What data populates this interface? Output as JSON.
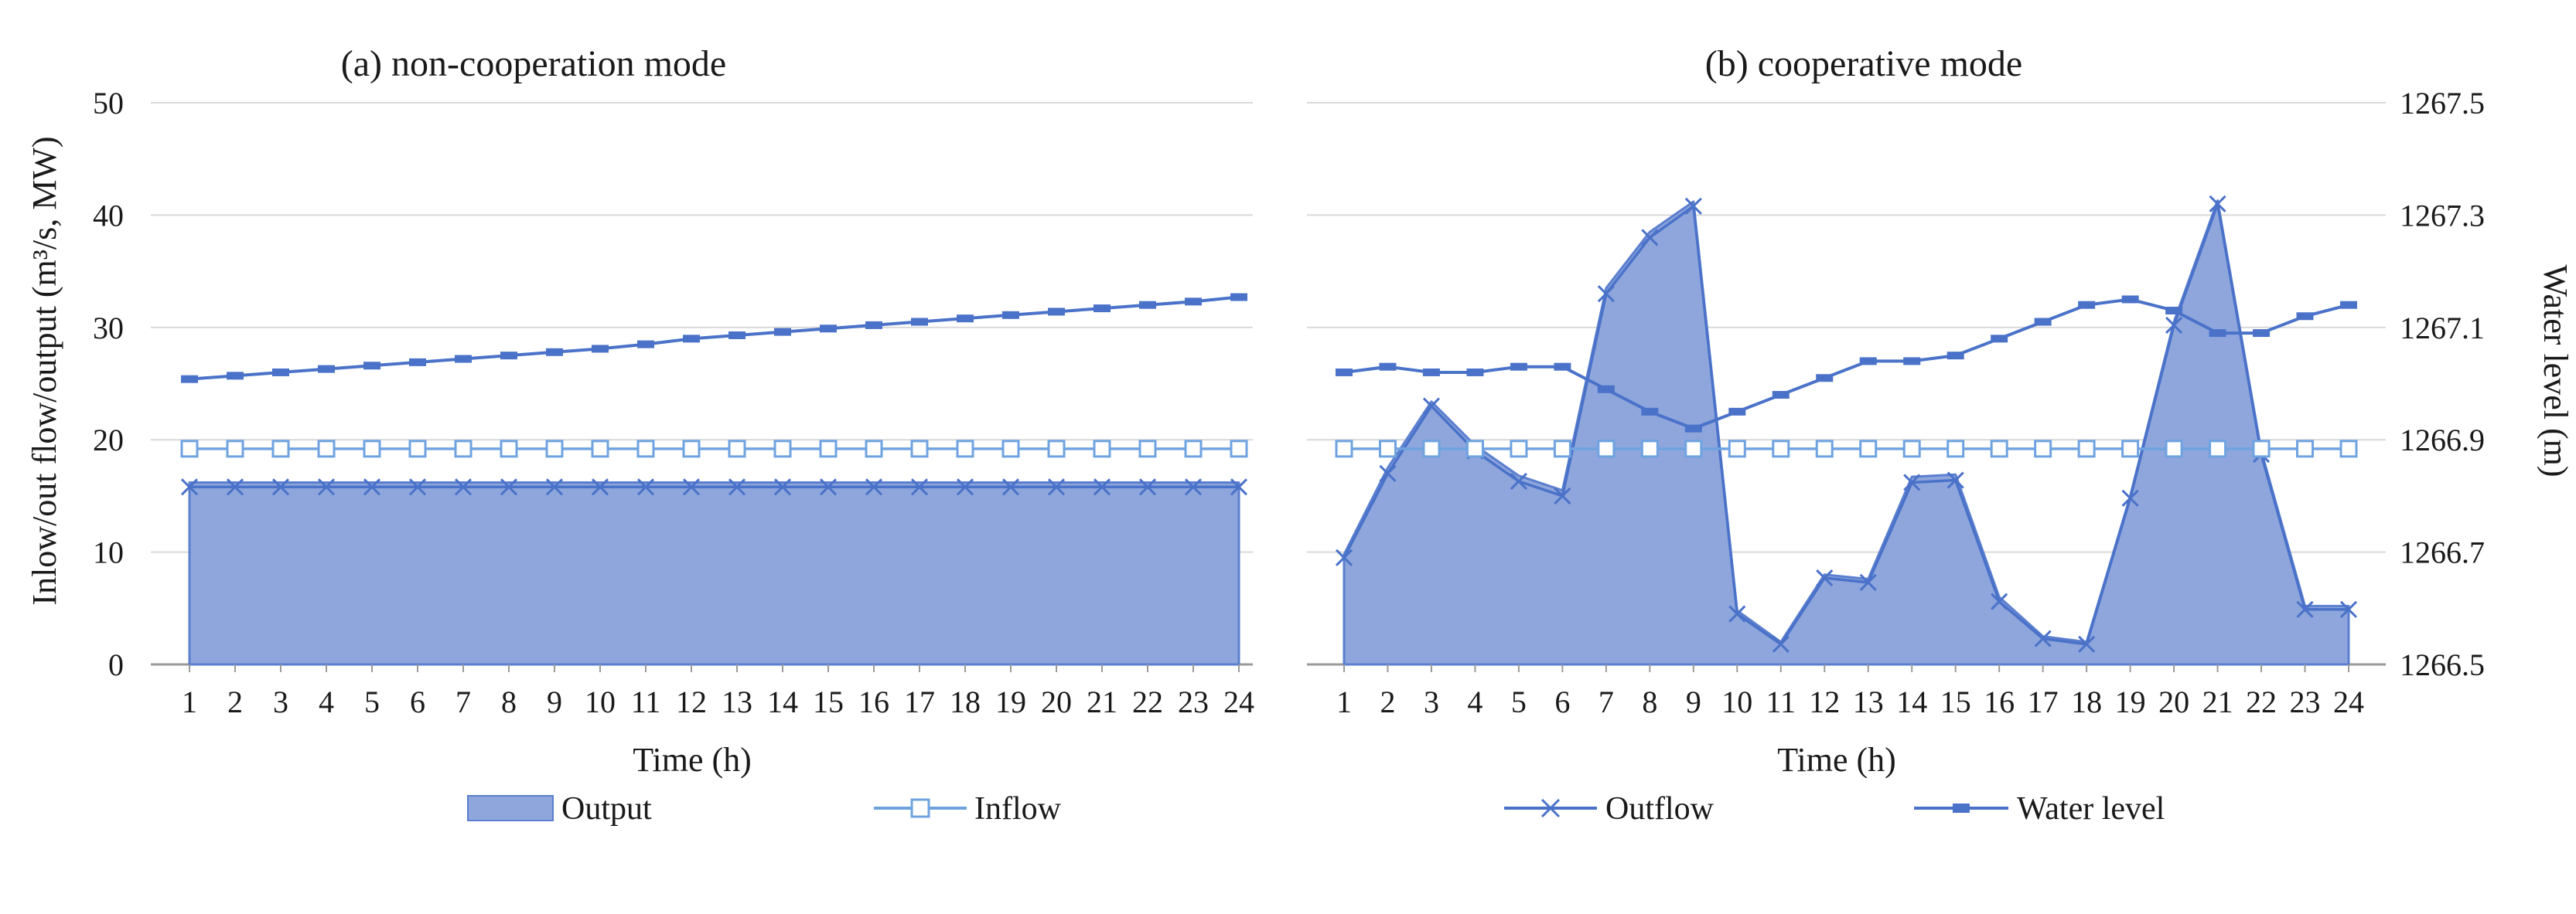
{
  "chart_data": [
    {
      "type": "area",
      "title": "(a) non-cooperation mode",
      "xlabel": "Time (h)",
      "ylabel": "Inlow/out flow/output (m³/s, MW)",
      "x": [
        1,
        2,
        3,
        4,
        5,
        6,
        7,
        8,
        9,
        10,
        11,
        12,
        13,
        14,
        15,
        16,
        17,
        18,
        19,
        20,
        21,
        22,
        23,
        24
      ],
      "xlim": [
        1,
        24
      ],
      "ylim": [
        0,
        50
      ],
      "y_ticks": [
        0,
        10,
        20,
        30,
        40,
        50
      ],
      "grid": true,
      "legend": "bottom",
      "series": [
        {
          "name": "Output",
          "kind": "area",
          "color": "#8ea6dc",
          "values": [
            16.2,
            16.2,
            16.2,
            16.2,
            16.2,
            16.2,
            16.2,
            16.2,
            16.2,
            16.2,
            16.2,
            16.2,
            16.2,
            16.2,
            16.2,
            16.2,
            16.2,
            16.2,
            16.2,
            16.2,
            16.2,
            16.2,
            16.2,
            16.2
          ]
        },
        {
          "name": "",
          "kind": "line-x",
          "color": "#4a72c9",
          "values": [
            15.8,
            15.8,
            15.8,
            15.8,
            15.8,
            15.8,
            15.8,
            15.8,
            15.8,
            15.8,
            15.8,
            15.8,
            15.8,
            15.8,
            15.8,
            15.8,
            15.8,
            15.8,
            15.8,
            15.8,
            15.8,
            15.8,
            15.8,
            15.8
          ]
        },
        {
          "name": "Inflow",
          "kind": "line-square",
          "color": "#6fa3e0",
          "values": [
            19.2,
            19.2,
            19.2,
            19.2,
            19.2,
            19.2,
            19.2,
            19.2,
            19.2,
            19.2,
            19.2,
            19.2,
            19.2,
            19.2,
            19.2,
            19.2,
            19.2,
            19.2,
            19.2,
            19.2,
            19.2,
            19.2,
            19.2,
            19.2
          ]
        },
        {
          "name": "",
          "kind": "line-dash",
          "color": "#4a72c9",
          "values": [
            25.4,
            25.7,
            26.0,
            26.3,
            26.6,
            26.9,
            27.2,
            27.5,
            27.8,
            28.1,
            28.5,
            29.0,
            29.3,
            29.6,
            29.9,
            30.2,
            30.5,
            30.8,
            31.1,
            31.4,
            31.7,
            32.0,
            32.3,
            32.7
          ]
        }
      ],
      "x_tick_labels": [
        "1",
        "2",
        "3",
        "4",
        "5",
        "6",
        "7",
        "8",
        "9",
        "10",
        "11",
        "12",
        "13",
        "14",
        "15",
        "16",
        "17",
        "18",
        "19",
        "20",
        "21",
        "22",
        "23",
        "24"
      ],
      "y_tick_labels": [
        "0",
        "10",
        "20",
        "30",
        "40",
        "50"
      ]
    },
    {
      "type": "area",
      "title": "(b) cooperative mode",
      "xlabel": "Time (h)",
      "ylabel_right": "Water level (m)",
      "x": [
        1,
        2,
        3,
        4,
        5,
        6,
        7,
        8,
        9,
        10,
        11,
        12,
        13,
        14,
        15,
        16,
        17,
        18,
        19,
        20,
        21,
        22,
        23,
        24
      ],
      "xlim": [
        1,
        24
      ],
      "ylim": [
        0,
        50
      ],
      "ylim_right": [
        1266.5,
        1267.5
      ],
      "y_right_ticks": [
        1266.5,
        1266.7,
        1266.9,
        1267.1,
        1267.3,
        1267.5
      ],
      "grid": true,
      "legend": "bottom",
      "series": [
        {
          "name": "",
          "kind": "area",
          "color": "#8ea6dc",
          "values": [
            9.8,
            17.5,
            23.4,
            19.5,
            16.8,
            15.5,
            33.5,
            38.5,
            41.2,
            4.8,
            2.0,
            8.0,
            7.6,
            16.7,
            16.9,
            6.0,
            2.5,
            2.0,
            15.0,
            30.5,
            41.3,
            19.0,
            5.2,
            5.2
          ]
        },
        {
          "name": "Outflow",
          "kind": "line-x",
          "color": "#4a72c9",
          "axis": "left",
          "values": [
            9.5,
            17.0,
            23.0,
            19.0,
            16.3,
            15.0,
            33.0,
            38.0,
            40.8,
            4.5,
            1.8,
            7.7,
            7.3,
            16.2,
            16.4,
            5.6,
            2.3,
            1.8,
            14.8,
            30.2,
            41.0,
            18.7,
            4.9,
            4.9
          ]
        },
        {
          "name": "",
          "kind": "line-square",
          "color": "#6fa3e0",
          "axis": "left",
          "values": [
            19.2,
            19.2,
            19.2,
            19.2,
            19.2,
            19.2,
            19.2,
            19.2,
            19.2,
            19.2,
            19.2,
            19.2,
            19.2,
            19.2,
            19.2,
            19.2,
            19.2,
            19.2,
            19.2,
            19.2,
            19.2,
            19.2,
            19.2,
            19.2
          ]
        },
        {
          "name": "Water level",
          "kind": "line-dash",
          "color": "#4a72c9",
          "axis": "right",
          "values": [
            1267.02,
            1267.03,
            1267.02,
            1267.02,
            1267.03,
            1267.03,
            1266.99,
            1266.95,
            1266.92,
            1266.95,
            1266.98,
            1267.01,
            1267.04,
            1267.04,
            1267.05,
            1267.08,
            1267.11,
            1267.14,
            1267.15,
            1267.13,
            1267.09,
            1267.09,
            1267.12,
            1267.14
          ]
        }
      ],
      "x_tick_labels": [
        "1",
        "2",
        "3",
        "4",
        "5",
        "6",
        "7",
        "8",
        "9",
        "10",
        "11",
        "12",
        "13",
        "14",
        "15",
        "16",
        "17",
        "18",
        "19",
        "20",
        "21",
        "22",
        "23",
        "24"
      ],
      "y_right_tick_labels": [
        "1266.5",
        "1266.7",
        "1266.9",
        "1267.1",
        "1267.3",
        "1267.5"
      ]
    }
  ],
  "colors": {
    "grid": "#d9d9d9",
    "axis": "#9a9a9a",
    "area_fill": "#8ea6dc",
    "area_edge": "#5b7fcf",
    "line_dark": "#4a72c9",
    "line_light": "#6fa3e0"
  }
}
